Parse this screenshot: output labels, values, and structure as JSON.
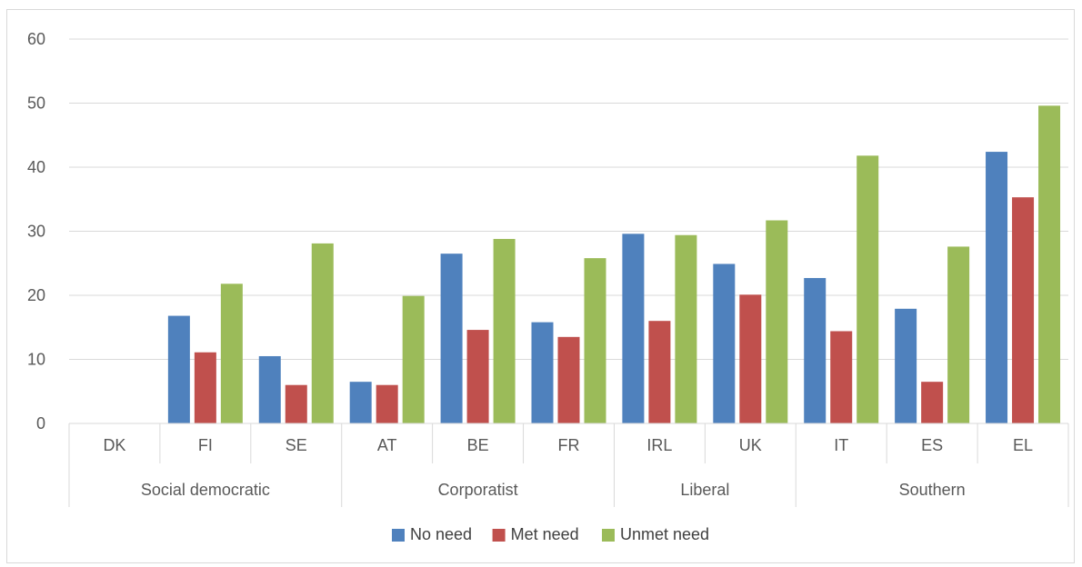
{
  "chart_data": {
    "type": "bar",
    "categories": [
      "DK",
      "FI",
      "SE",
      "AT",
      "BE",
      "FR",
      "IRL",
      "UK",
      "IT",
      "ES",
      "EL"
    ],
    "groups": [
      {
        "label": "Social democratic",
        "categories": [
          "DK",
          "FI",
          "SE"
        ]
      },
      {
        "label": "Corporatist",
        "categories": [
          "AT",
          "BE",
          "FR"
        ]
      },
      {
        "label": "Liberal",
        "categories": [
          "IRL",
          "UK"
        ]
      },
      {
        "label": "Southern",
        "categories": [
          "IT",
          "ES",
          "EL"
        ]
      }
    ],
    "series": [
      {
        "name": "No need",
        "color": "#4f81bd",
        "values": [
          0,
          16.8,
          10.5,
          6.5,
          26.5,
          15.8,
          29.6,
          24.9,
          22.7,
          17.9,
          42.4
        ]
      },
      {
        "name": "Met need",
        "color": "#c0504d",
        "values": [
          0,
          11.1,
          6.0,
          6.0,
          14.6,
          13.5,
          16.0,
          20.1,
          14.4,
          6.5,
          35.3
        ]
      },
      {
        "name": "Unmet need",
        "color": "#9bbb59",
        "values": [
          0,
          21.8,
          28.1,
          19.9,
          28.8,
          25.8,
          29.4,
          31.7,
          41.8,
          27.6,
          49.6
        ]
      }
    ],
    "yticks": [
      0,
      10,
      20,
      30,
      40,
      50,
      60
    ],
    "ylim": [
      0,
      60
    ],
    "grid": true,
    "legend": "bottom",
    "title": "",
    "xlabel": "",
    "ylabel": ""
  }
}
